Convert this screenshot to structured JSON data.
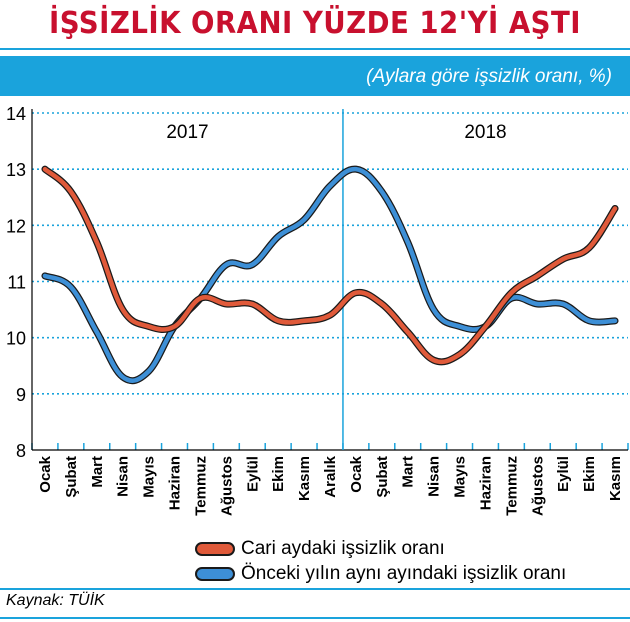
{
  "header": {
    "title": "İŞSİZLİK ORANI YÜZDE 12'Yİ AŞTI",
    "subtitle": "(Aylara göre işsizlik oranı, %)"
  },
  "source": "Kaynak: TÜİK",
  "colors": {
    "accent": "#1aa3dc",
    "title": "#c8102e",
    "series1": "#e05a3a",
    "series2": "#3d8fd6"
  },
  "chart_data": {
    "type": "line",
    "title": "İŞSİZLİK ORANI YÜZDE 12'Yİ AŞTI",
    "subtitle": "(Aylara göre işsizlik oranı, %)",
    "year_labels": [
      "2017",
      "2018"
    ],
    "categories": [
      "Ocak",
      "Şubat",
      "Mart",
      "Nisan",
      "Mayıs",
      "Haziran",
      "Temmuz",
      "Ağustos",
      "Eylül",
      "Ekim",
      "Kasım",
      "Aralık",
      "Ocak",
      "Şubat",
      "Mart",
      "Nisan",
      "Mayıs",
      "Haziran",
      "Temmuz",
      "Ağustos",
      "Eylül",
      "Ekim",
      "Kasım"
    ],
    "yticks": [
      8,
      9,
      10,
      11,
      12,
      13,
      14
    ],
    "ylim": [
      8,
      14
    ],
    "grid": true,
    "legend_position": "bottom",
    "series": [
      {
        "name": "Cari aydaki işsizlik oranı",
        "values": [
          13.0,
          12.6,
          11.7,
          10.5,
          10.2,
          10.2,
          10.7,
          10.6,
          10.6,
          10.3,
          10.3,
          10.4,
          10.8,
          10.6,
          10.1,
          9.6,
          9.7,
          10.2,
          10.8,
          11.1,
          11.4,
          11.6,
          12.3
        ]
      },
      {
        "name": "Önceki yılın aynı ayındaki işsizlik oranı",
        "values": [
          11.1,
          10.9,
          10.1,
          9.3,
          9.4,
          10.2,
          10.7,
          11.3,
          11.3,
          11.8,
          12.1,
          12.7,
          13.0,
          12.6,
          11.7,
          10.5,
          10.2,
          10.2,
          10.7,
          10.6,
          10.6,
          10.3,
          10.3
        ]
      }
    ]
  }
}
